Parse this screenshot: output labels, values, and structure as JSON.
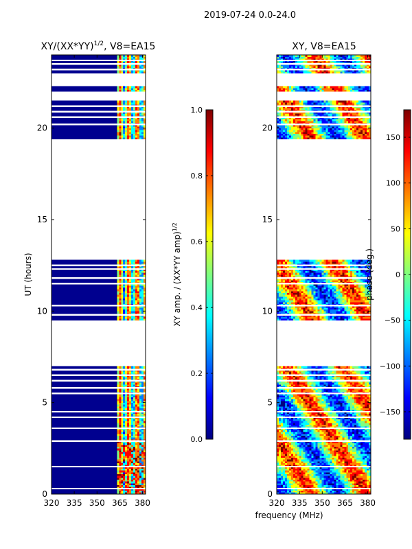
{
  "suptitle": "2019-07-24 0.0-24.0",
  "colors": {
    "background": "#ffffff",
    "data_base": "#00008f",
    "jet": [
      "#00007f",
      "#0000ff",
      "#007fff",
      "#00ffff",
      "#7fff7f",
      "#ffff00",
      "#ff7f00",
      "#ff0000",
      "#7f0000"
    ]
  },
  "chart_data": [
    {
      "type": "heatmap",
      "title_main": "XY/(XX*YY)",
      "title_exp": "1/2",
      "title_suffix": ", V8=EA15",
      "xlabel": "",
      "ylabel": "UT (hours)",
      "xlim": [
        320,
        382
      ],
      "ylim": [
        0,
        24
      ],
      "xticks": [
        320,
        335,
        350,
        365,
        380
      ],
      "yticks": [
        0,
        5,
        10,
        15,
        20
      ],
      "colorbar": {
        "label_main": "XY amp. / (XX*YY amp)",
        "label_exp": "1/2",
        "range": [
          0.0,
          1.0
        ],
        "ticks": [
          0.0,
          0.2,
          0.4,
          0.6,
          0.8,
          1.0
        ],
        "tick_labels": [
          "0.0",
          "0.2",
          "0.4",
          "0.6",
          "0.8",
          "1.0"
        ]
      },
      "data_ranges_hours": [
        [
          0.0,
          7.0
        ],
        [
          9.5,
          12.8
        ],
        [
          19.4,
          21.5
        ],
        [
          22.0,
          22.3
        ],
        [
          23.0,
          24.0
        ]
      ],
      "gap_lines_hours": [
        0.3,
        1.5,
        2.9,
        3.6,
        4.2,
        4.5,
        5.5,
        5.8,
        6.2,
        6.5,
        6.8,
        9.8,
        10.3,
        11.5,
        11.8,
        12.3,
        12.5,
        20.2,
        20.6,
        20.9,
        21.2,
        23.2,
        23.5,
        23.7
      ],
      "hot_channel_band_mhz": [
        363,
        381
      ],
      "value_range": [
        0.0,
        1.0
      ]
    },
    {
      "type": "heatmap",
      "title_main": "XY, V8=EA15",
      "title_exp": "",
      "title_suffix": "",
      "xlabel": "frequency (MHz)",
      "ylabel": "",
      "xlim": [
        320,
        382
      ],
      "ylim": [
        0,
        24
      ],
      "xticks": [
        320,
        335,
        350,
        365,
        380
      ],
      "yticks": [
        0,
        5,
        10,
        15,
        20
      ],
      "colorbar": {
        "label_main": "phase (deg.)",
        "label_exp": "",
        "range": [
          -180,
          180
        ],
        "ticks": [
          -150,
          -100,
          -50,
          0,
          50,
          100,
          150
        ],
        "tick_labels": [
          "−150",
          "−100",
          "−50",
          "0",
          "50",
          "100",
          "150"
        ]
      },
      "data_ranges_hours": [
        [
          0.0,
          7.0
        ],
        [
          9.5,
          12.8
        ],
        [
          19.4,
          21.5
        ],
        [
          22.0,
          22.3
        ],
        [
          23.0,
          24.0
        ]
      ],
      "gap_lines_hours": [
        0.3,
        1.5,
        2.9,
        3.6,
        4.2,
        4.5,
        5.5,
        5.8,
        6.2,
        6.5,
        6.8,
        9.8,
        10.3,
        11.5,
        11.8,
        12.3,
        12.5,
        20.2,
        20.6,
        20.9,
        21.2,
        23.2,
        23.5,
        23.7
      ],
      "hot_channel_band_mhz": [
        320,
        382
      ],
      "value_range": [
        -180,
        180
      ]
    }
  ]
}
